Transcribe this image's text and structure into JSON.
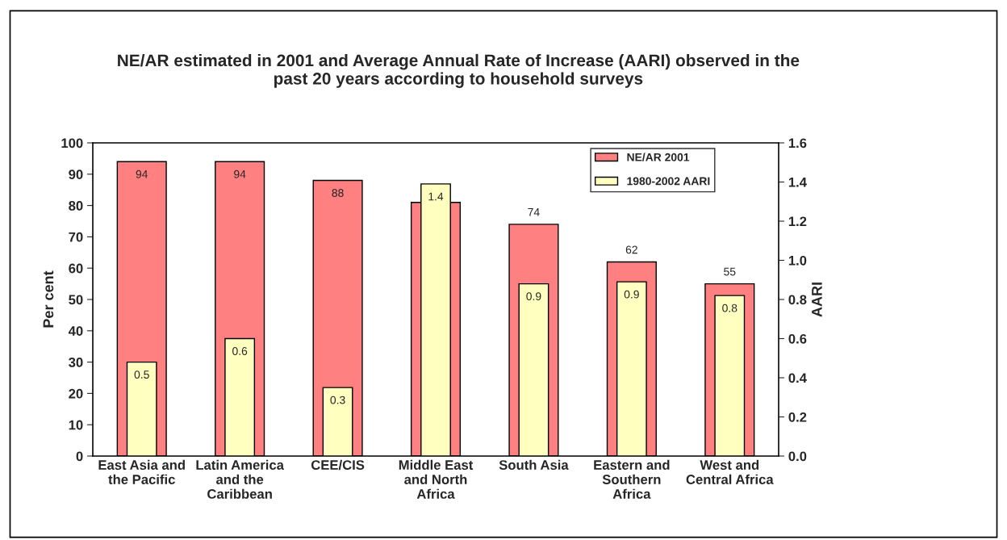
{
  "chart_data": {
    "type": "bar",
    "title": "NE/AR estimated in 2001 and Average Annual Rate of Increase (AARI) observed in the\npast 20 years according to household surveys",
    "categories": [
      "East Asia and\nthe Pacific",
      "Latin America\nand the\nCaribbean",
      "CEE/CIS",
      "Middle East\nand North\nAfrica",
      "South Asia",
      "Eastern and\nSouthern\nAfrica",
      "West and\nCentral Africa"
    ],
    "series": [
      {
        "name": "NE/AR 2001",
        "axis": "y",
        "color": "#ff8080",
        "values": [
          94,
          94,
          88,
          81,
          74,
          62,
          55
        ],
        "value_labels": [
          "94",
          "94",
          "88",
          null,
          "74",
          "62",
          "55"
        ]
      },
      {
        "name": "1980-2002 AARI",
        "axis": "y2",
        "color": "#ffffc0",
        "values": [
          0.48,
          0.6,
          0.35,
          1.39,
          0.88,
          0.89,
          0.82
        ],
        "value_labels": [
          "0.5",
          "0.6",
          "0.3",
          "1.4",
          "0.9",
          "0.9",
          "0.8"
        ]
      }
    ],
    "ylabel": "Per cent",
    "y2label": "AARI",
    "ylim": [
      0,
      100
    ],
    "yticks": [
      0,
      10,
      20,
      30,
      40,
      50,
      60,
      70,
      80,
      90,
      100
    ],
    "y2lim": [
      0,
      1.6
    ],
    "y2ticks": [
      {
        "value": 0,
        "label": "0.0"
      },
      0.2,
      0.4,
      0.6,
      0.8,
      {
        "value": 1,
        "label": "1.0"
      },
      1.2,
      1.4,
      1.6
    ],
    "legend": "top right",
    "grid": false
  }
}
